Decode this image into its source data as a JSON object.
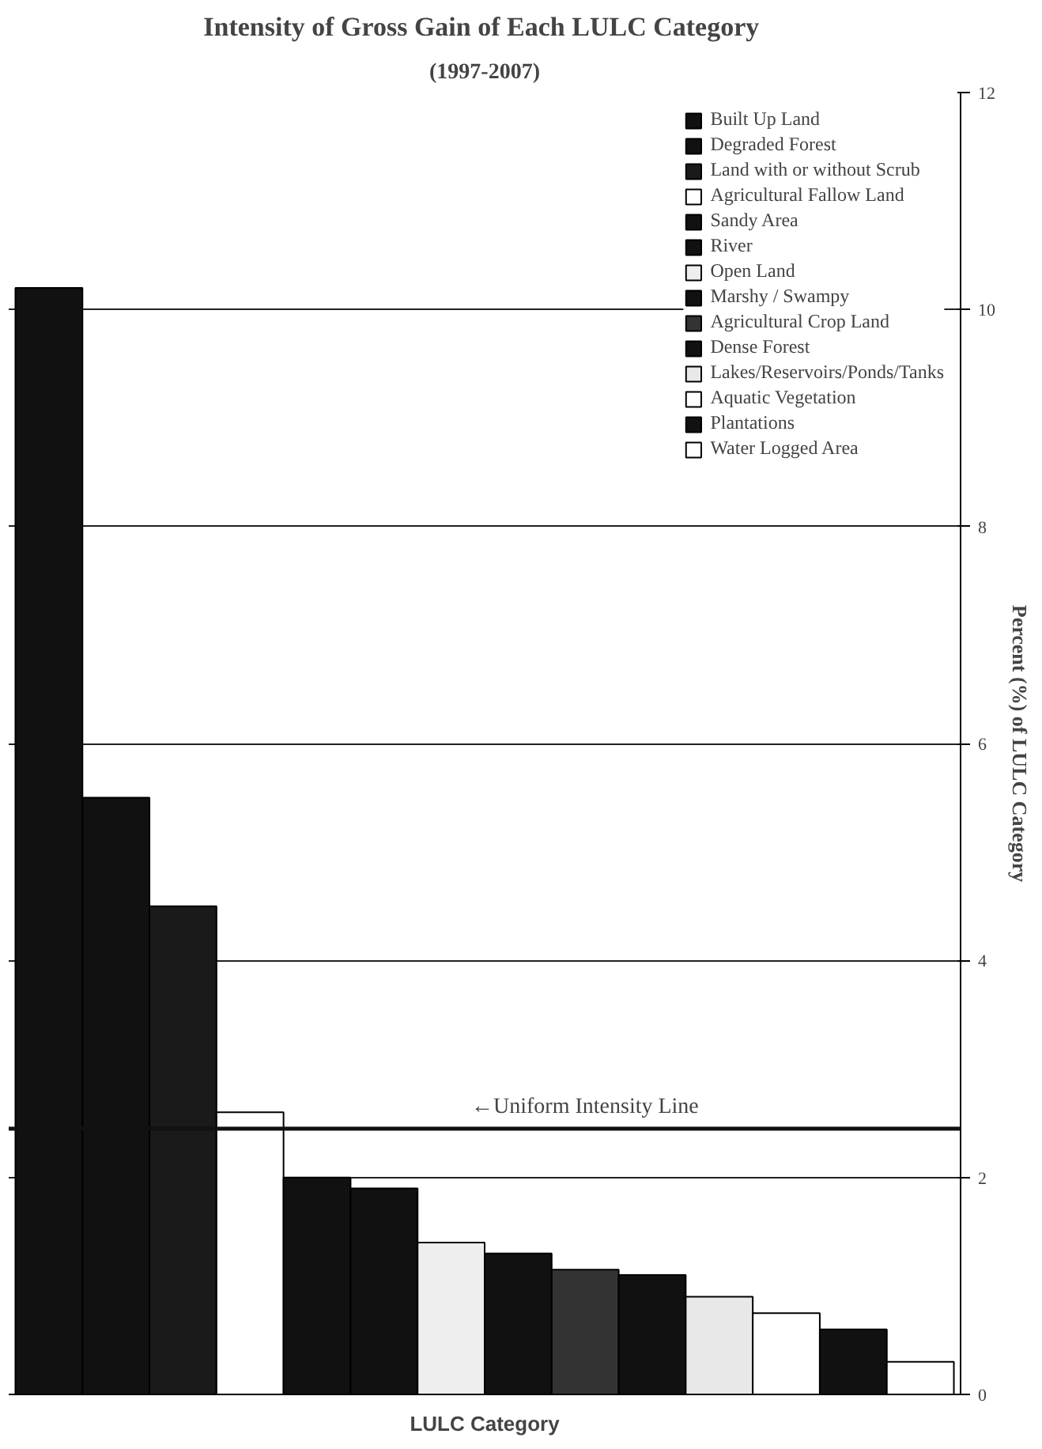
{
  "chart_data": {
    "type": "bar",
    "title": "Intensity of Gross  Gain of Each LULC Category",
    "subtitle": "(1997-2007)",
    "xlabel": "LULC Category",
    "ylabel": "Percent (%) of LULC Category",
    "categories": [
      null,
      null,
      null,
      null,
      null,
      null,
      null,
      null,
      null,
      null,
      null,
      null,
      null,
      null
    ],
    "series": [
      {
        "name": "Built Up Land",
        "color": "#111111",
        "values": [
          10.2,
          null,
          null,
          null,
          null,
          null,
          null,
          null,
          null,
          null,
          null,
          null,
          null,
          null
        ]
      },
      {
        "name": "Degraded Forest",
        "color": "#111111",
        "values": [
          null,
          5.5,
          null,
          null,
          null,
          null,
          null,
          null,
          null,
          null,
          null,
          null,
          null,
          null
        ]
      },
      {
        "name": "Land with or without Scrub",
        "color": "#1a1a1a",
        "values": [
          null,
          null,
          4.5,
          null,
          null,
          null,
          null,
          null,
          null,
          null,
          null,
          null,
          null,
          null
        ]
      },
      {
        "name": "Agricultural Fallow Land",
        "color": "#ffffff",
        "values": [
          null,
          null,
          null,
          2.6,
          null,
          null,
          null,
          null,
          null,
          null,
          null,
          null,
          null,
          null
        ]
      },
      {
        "name": "Sandy Area",
        "color": "#111111",
        "values": [
          null,
          null,
          null,
          null,
          2.0,
          null,
          null,
          null,
          null,
          null,
          null,
          null,
          null,
          null
        ]
      },
      {
        "name": "River",
        "color": "#111111",
        "values": [
          null,
          null,
          null,
          null,
          null,
          1.9,
          null,
          null,
          null,
          null,
          null,
          null,
          null,
          null
        ]
      },
      {
        "name": "Open Land",
        "color": "#eeeeee",
        "values": [
          null,
          null,
          null,
          null,
          null,
          null,
          1.4,
          null,
          null,
          null,
          null,
          null,
          null,
          null
        ]
      },
      {
        "name": "Marshy / Swampy",
        "color": "#111111",
        "values": [
          null,
          null,
          null,
          null,
          null,
          null,
          null,
          1.3,
          null,
          null,
          null,
          null,
          null,
          null
        ]
      },
      {
        "name": "Agricultural Crop Land",
        "color": "#333333",
        "values": [
          null,
          null,
          null,
          null,
          null,
          null,
          null,
          null,
          1.15,
          null,
          null,
          null,
          null,
          null
        ]
      },
      {
        "name": "Dense Forest",
        "color": "#111111",
        "values": [
          null,
          null,
          null,
          null,
          null,
          null,
          null,
          null,
          null,
          1.1,
          null,
          null,
          null,
          null
        ]
      },
      {
        "name": "Lakes/Reservoirs/Ponds/Tanks",
        "color": "#e8e8e8",
        "values": [
          null,
          null,
          null,
          null,
          null,
          null,
          null,
          null,
          null,
          null,
          0.9,
          null,
          null,
          null
        ]
      },
      {
        "name": "Aquatic Vegetation",
        "color": "#ffffff",
        "values": [
          null,
          null,
          null,
          null,
          null,
          null,
          null,
          null,
          null,
          null,
          null,
          0.75,
          null,
          null
        ]
      },
      {
        "name": "Plantations",
        "color": "#111111",
        "values": [
          null,
          null,
          null,
          null,
          null,
          null,
          null,
          null,
          null,
          null,
          null,
          null,
          0.6,
          null
        ]
      },
      {
        "name": "Water Logged Area",
        "color": "#ffffff",
        "values": [
          null,
          null,
          null,
          null,
          null,
          null,
          null,
          null,
          null,
          null,
          null,
          null,
          null,
          0.3
        ]
      }
    ],
    "ylim": [
      0,
      12
    ],
    "yticks": [
      0,
      2,
      4,
      6,
      8,
      10,
      12
    ],
    "grid": "y",
    "legend": "top right",
    "ref_lines": [
      {
        "axis": "y",
        "value": 2.45,
        "label": "←Uniform Intensity Line",
        "color": "#111111"
      }
    ]
  }
}
